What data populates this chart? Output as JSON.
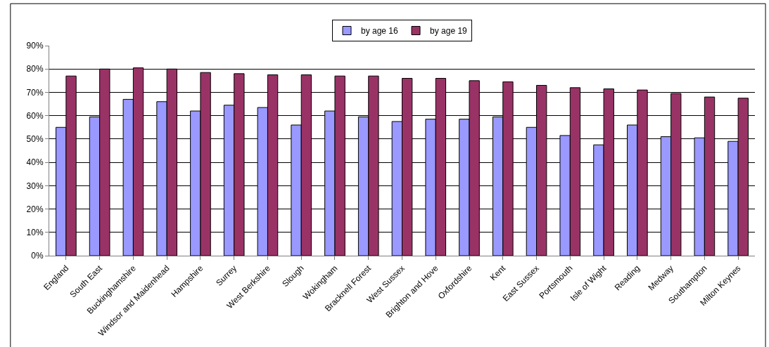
{
  "chart_data": {
    "type": "bar",
    "categories": [
      "England",
      "South East",
      "Buckinghamshire",
      "Windsor and Maidenhead",
      "Hampshire",
      "Surrey",
      "West Berkshire",
      "Slough",
      "Wokingham",
      "Bracknell Forest",
      "West Sussex",
      "Brighton and Hove",
      "Oxfordshire",
      "Kent",
      "East Sussex",
      "Portsmouth",
      "Isle of Wight",
      "Reading",
      "Medway",
      "Southampton",
      "Milton Keynes"
    ],
    "series": [
      {
        "name": "by age 16",
        "color": "#9999ff",
        "values": [
          55,
          59.5,
          67,
          66,
          62,
          64.5,
          63.5,
          56,
          62,
          59.5,
          57.5,
          58.5,
          58.5,
          59.5,
          55,
          51.5,
          47.5,
          56,
          51,
          50.5,
          49
        ]
      },
      {
        "name": "by age 19",
        "color": "#993366",
        "values": [
          77,
          80,
          80.5,
          80,
          78.5,
          78,
          77.5,
          77.5,
          77,
          77,
          76,
          76,
          75,
          74.5,
          73,
          72,
          71.5,
          71,
          69.5,
          68,
          67.5
        ]
      }
    ],
    "ylim": [
      0,
      90
    ],
    "yticks": [
      {
        "value": 0,
        "label": "0%"
      },
      {
        "value": 10,
        "label": "10%"
      },
      {
        "value": 20,
        "label": "20%"
      },
      {
        "value": 30,
        "label": "30%"
      },
      {
        "value": 40,
        "label": "40%"
      },
      {
        "value": 50,
        "label": "50%"
      },
      {
        "value": 60,
        "label": "60%"
      },
      {
        "value": 70,
        "label": "70%"
      },
      {
        "value": 80,
        "label": "80%"
      },
      {
        "value": 90,
        "label": "90%"
      }
    ],
    "grid": "y",
    "legend": "top"
  }
}
